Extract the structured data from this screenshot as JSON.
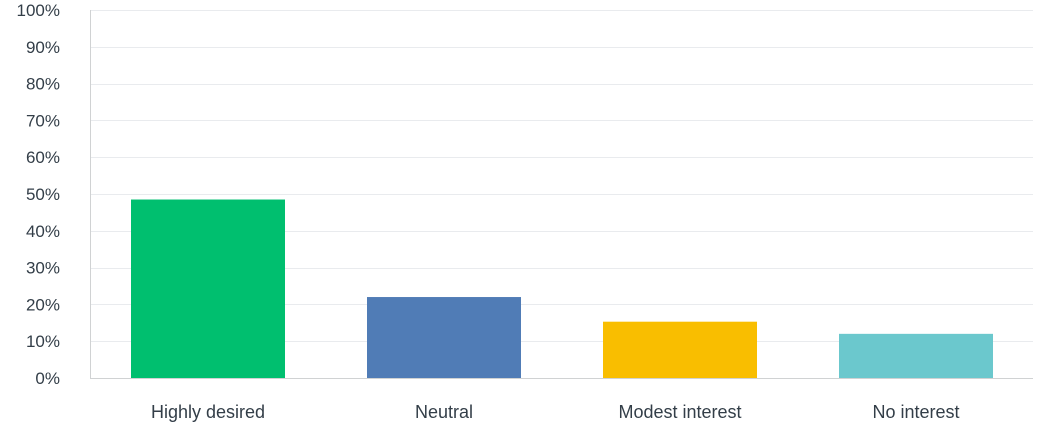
{
  "chart_data": {
    "type": "bar",
    "categories": [
      "Highly desired",
      "Neutral",
      "Modest interest",
      "No interest"
    ],
    "values": [
      48.5,
      22,
      15.3,
      12
    ],
    "colors": [
      "#00bf6f",
      "#507cb6",
      "#f9be00",
      "#6bc8cd"
    ],
    "ylim": [
      0,
      100
    ],
    "y_ticks": [
      0,
      10,
      20,
      30,
      40,
      50,
      60,
      70,
      80,
      90,
      100
    ],
    "y_tick_labels": [
      "0%",
      "10%",
      "20%",
      "30%",
      "40%",
      "50%",
      "60%",
      "70%",
      "80%",
      "90%",
      "100%"
    ],
    "grid": true,
    "title": "",
    "xlabel": "",
    "ylabel": ""
  }
}
